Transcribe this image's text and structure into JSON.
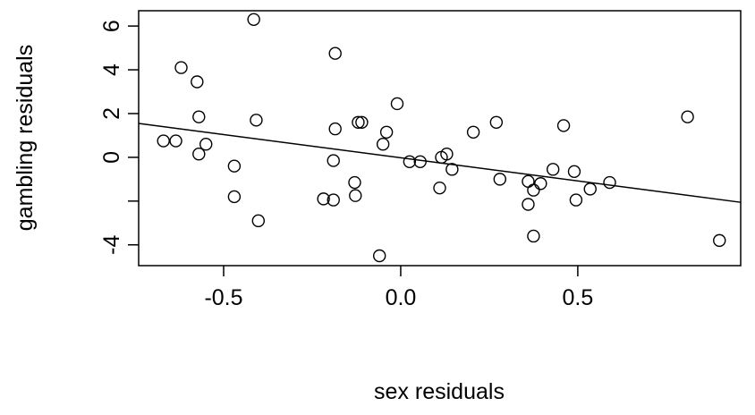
{
  "chart_data": {
    "type": "scatter",
    "xlabel": "sex residuals",
    "ylabel": "gambling residuals",
    "xlim": [
      -0.74,
      0.96
    ],
    "ylim": [
      -4.95,
      6.7
    ],
    "x_ticks": [
      -0.5,
      0.0,
      0.5
    ],
    "x_tick_labels": [
      "-0.5",
      "0.0",
      "0.5"
    ],
    "y_ticks": [
      -4,
      -2,
      0,
      2,
      4,
      6
    ],
    "y_tick_labels": [
      "-4",
      "",
      "0",
      "2",
      "4",
      "6"
    ],
    "grid": false,
    "regression_line": {
      "intercept": -0.02,
      "slope": -2.12
    },
    "points": [
      {
        "x": -0.67,
        "y": 0.75
      },
      {
        "x": -0.635,
        "y": 0.75
      },
      {
        "x": -0.62,
        "y": 4.1
      },
      {
        "x": -0.575,
        "y": 3.45
      },
      {
        "x": -0.57,
        "y": 1.85
      },
      {
        "x": -0.57,
        "y": 0.15
      },
      {
        "x": -0.55,
        "y": 0.6
      },
      {
        "x": -0.47,
        "y": -0.4
      },
      {
        "x": -0.47,
        "y": -1.8
      },
      {
        "x": -0.415,
        "y": 6.3
      },
      {
        "x": -0.408,
        "y": 1.7
      },
      {
        "x": -0.402,
        "y": -2.9
      },
      {
        "x": -0.218,
        "y": -1.9
      },
      {
        "x": -0.19,
        "y": -1.95
      },
      {
        "x": -0.19,
        "y": -0.15
      },
      {
        "x": -0.185,
        "y": 4.75
      },
      {
        "x": -0.185,
        "y": 1.3
      },
      {
        "x": -0.13,
        "y": -1.15
      },
      {
        "x": -0.128,
        "y": -1.75
      },
      {
        "x": -0.12,
        "y": 1.6
      },
      {
        "x": -0.11,
        "y": 1.6
      },
      {
        "x": -0.06,
        "y": -4.5
      },
      {
        "x": -0.05,
        "y": 0.6
      },
      {
        "x": -0.04,
        "y": 1.15
      },
      {
        "x": -0.01,
        "y": 2.45
      },
      {
        "x": 0.025,
        "y": -0.2
      },
      {
        "x": 0.055,
        "y": -0.2
      },
      {
        "x": 0.11,
        "y": -1.4
      },
      {
        "x": 0.115,
        "y": 0.0
      },
      {
        "x": 0.13,
        "y": 0.15
      },
      {
        "x": 0.145,
        "y": -0.55
      },
      {
        "x": 0.205,
        "y": 1.15
      },
      {
        "x": 0.27,
        "y": 1.6
      },
      {
        "x": 0.28,
        "y": -1.0
      },
      {
        "x": 0.36,
        "y": -1.1
      },
      {
        "x": 0.36,
        "y": -2.15
      },
      {
        "x": 0.375,
        "y": -1.5
      },
      {
        "x": 0.375,
        "y": -3.6
      },
      {
        "x": 0.395,
        "y": -1.2
      },
      {
        "x": 0.43,
        "y": -0.55
      },
      {
        "x": 0.46,
        "y": 1.45
      },
      {
        "x": 0.49,
        "y": -0.65
      },
      {
        "x": 0.495,
        "y": -1.95
      },
      {
        "x": 0.535,
        "y": -1.45
      },
      {
        "x": 0.59,
        "y": -1.15
      },
      {
        "x": 0.81,
        "y": 1.85
      },
      {
        "x": 0.9,
        "y": -3.8
      }
    ]
  }
}
